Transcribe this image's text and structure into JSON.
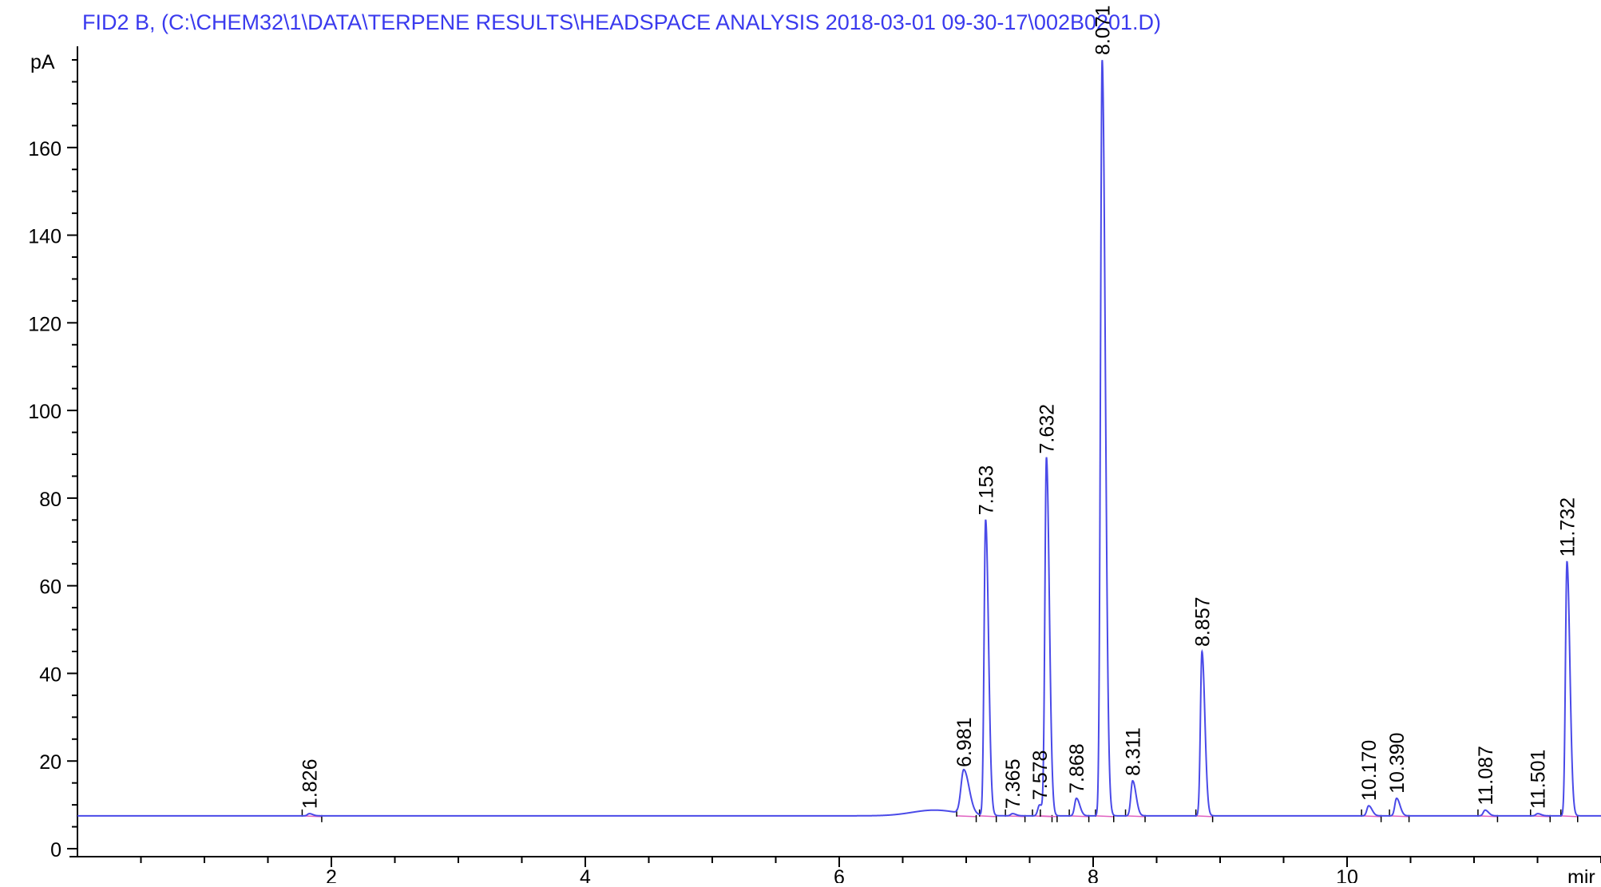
{
  "chart_data": {
    "type": "line",
    "title": "FID2 B,  (C:\\CHEM32\\1\\DATA\\TERPENE RESULTS\\HEADSPACE ANALYSIS 2018-03-01 09-30-17\\002B0201.D)",
    "xlabel": "mir",
    "ylabel": "pA",
    "xlim": [
      0,
      12.0
    ],
    "ylim": [
      0,
      180
    ],
    "xticks": [
      2,
      4,
      6,
      8,
      10
    ],
    "yticks": [
      0,
      20,
      40,
      60,
      80,
      100,
      120,
      140,
      160
    ],
    "grid": false,
    "colors": {
      "trace": "#4a4ae8",
      "title": "#3a3aee",
      "axis": "#000000",
      "baseline": "#e060c0"
    },
    "baseline_level": 7.5,
    "series": [
      {
        "peaks": [
          {
            "rt": 1.826,
            "height": 8.0,
            "label": "1.826"
          },
          {
            "rt": 6.981,
            "height": 17.5,
            "label": "6.981"
          },
          {
            "rt": 7.153,
            "height": 75,
            "label": "7.153"
          },
          {
            "rt": 7.365,
            "height": 8.0,
            "label": "7.365"
          },
          {
            "rt": 7.578,
            "height": 10.0,
            "label": "7.578"
          },
          {
            "rt": 7.632,
            "height": 89,
            "label": "7.632"
          },
          {
            "rt": 7.868,
            "height": 11.5,
            "label": "7.868"
          },
          {
            "rt": 8.071,
            "height": 180,
            "label": "8.071"
          },
          {
            "rt": 8.311,
            "height": 15.5,
            "label": "8.311"
          },
          {
            "rt": 8.857,
            "height": 45,
            "label": "8.857"
          },
          {
            "rt": 10.17,
            "height": 9.8,
            "label": "10.170"
          },
          {
            "rt": 10.39,
            "height": 11.5,
            "label": "10.390"
          },
          {
            "rt": 11.087,
            "height": 8.8,
            "label": "11.087"
          },
          {
            "rt": 11.501,
            "height": 8.0,
            "label": "11.501"
          },
          {
            "rt": 11.732,
            "height": 65.5,
            "label": "11.732"
          }
        ]
      }
    ]
  }
}
